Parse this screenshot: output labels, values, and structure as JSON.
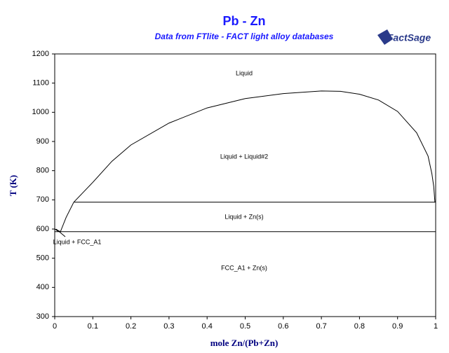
{
  "chart_data": {
    "type": "line",
    "title": "Pb - Zn",
    "subtitle": "Data from FTlite - FACT light alloy databases",
    "logo": "FactSage",
    "x_label": "mole Zn/(Pb+Zn)",
    "y_label": "T (K)",
    "xlim": [
      0,
      1
    ],
    "ylim": [
      300,
      1200
    ],
    "xticks": [
      0,
      0.1,
      0.2,
      0.3,
      0.4,
      0.5,
      0.6,
      0.7,
      0.8,
      0.9,
      1
    ],
    "yticks": [
      300,
      400,
      500,
      600,
      700,
      800,
      900,
      1000,
      1100,
      1200
    ],
    "color": "#000000",
    "series": [
      {
        "x": [
          0.05,
          0.1,
          0.15,
          0.2,
          0.3,
          0.4,
          0.5,
          0.6,
          0.7,
          0.75,
          0.8,
          0.85,
          0.9,
          0.95,
          0.98,
          0.99,
          0.995,
          0.998
        ],
        "values": [
          692,
          760,
          832,
          888,
          963,
          1015,
          1047,
          1064,
          1073,
          1072,
          1062,
          1042,
          1003,
          930,
          850,
          790,
          745,
          692
        ]
      },
      {
        "x": [
          0,
          0.015,
          0.03,
          0.05
        ],
        "values": [
          600,
          591,
          640,
          692
        ]
      },
      {
        "x": [
          0,
          0.005,
          0.01
        ],
        "values": [
          600,
          596,
          591
        ]
      },
      {
        "x": [
          0.05,
          1
        ],
        "values": [
          692,
          692
        ]
      },
      {
        "x": [
          0,
          1
        ],
        "values": [
          591,
          591
        ]
      }
    ],
    "annotations": [
      "Liquid",
      "Liquid + Liquid#2",
      "Liquid + Zn(s)",
      "Liquid + FCC_A1",
      "FCC_A1 + Zn(s)"
    ]
  }
}
